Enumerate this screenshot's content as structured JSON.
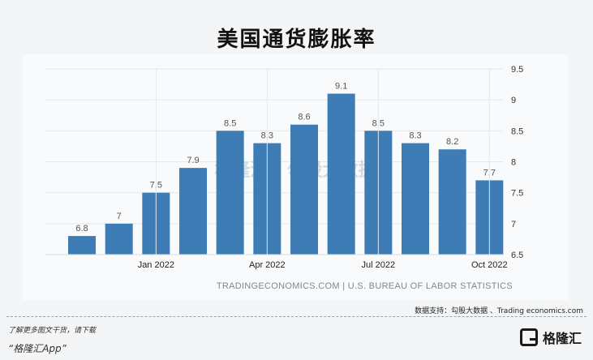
{
  "title": "美国通货膨胀率",
  "source_note": "数据支持：勾股大数据 、Trading economics.com",
  "footer": {
    "download_text": "了解更多图文干货，请下载",
    "app_name": "“格隆汇App”",
    "logo_text": "格隆汇"
  },
  "watermark": "格隆汇 | 勾股大数据",
  "chart_data": {
    "type": "bar",
    "title": "美国通货膨胀率",
    "values": [
      6.8,
      7.0,
      7.5,
      7.9,
      8.5,
      8.3,
      8.6,
      9.1,
      8.5,
      8.3,
      8.2,
      7.7
    ],
    "value_labels": [
      "6.8",
      "7",
      "7.5",
      "7.9",
      "8.5",
      "8.3",
      "8.6",
      "9.1",
      "8.5",
      "8.3",
      "8.2",
      "7.7"
    ],
    "x_tick_labels": [
      "Jan 2022",
      "Apr 2022",
      "Jul 2022",
      "Oct 2022"
    ],
    "x_tick_bar_index": [
      2,
      5,
      8,
      11
    ],
    "y_ticks": [
      "6.5",
      "7",
      "7.5",
      "8",
      "8.5",
      "9",
      "9.5"
    ],
    "ylim": [
      6.5,
      9.5
    ],
    "y_axis_position": "right",
    "grid": true,
    "color": "#3d7cb4",
    "source": "TRADINGECONOMICS.COM | U.S. BUREAU OF LABOR STATISTICS"
  }
}
